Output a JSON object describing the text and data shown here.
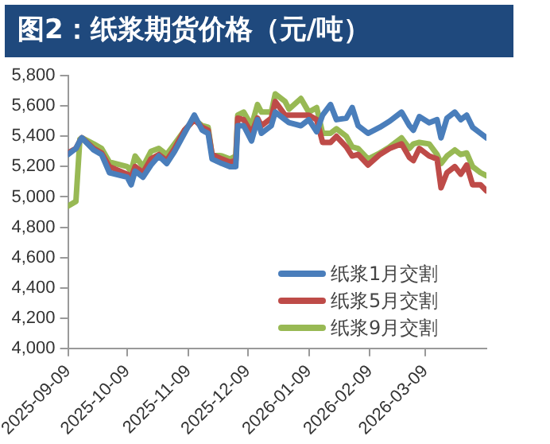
{
  "chart_data": {
    "type": "line",
    "title": "图2：纸浆期货价格（元/吨）",
    "x": [
      "2025-09-09",
      "2025-09-13",
      "2025-09-15",
      "2025-09-16",
      "2025-09-22",
      "2025-09-26",
      "2025-09-30",
      "2025-10-09",
      "2025-10-11",
      "2025-10-13",
      "2025-10-17",
      "2025-10-21",
      "2025-10-25",
      "2025-10-29",
      "2025-11-02",
      "2025-11-07",
      "2025-11-12",
      "2025-11-16",
      "2025-11-19",
      "2025-11-21",
      "2025-11-26",
      "2025-11-30",
      "2025-12-03",
      "2025-12-04",
      "2025-12-07",
      "2025-12-11",
      "2025-12-14",
      "2025-12-16",
      "2025-12-21",
      "2025-12-23",
      "2025-12-28",
      "2025-12-30",
      "2026-01-05",
      "2026-01-09",
      "2026-01-13",
      "2026-01-16",
      "2026-01-20",
      "2026-01-23",
      "2026-01-28",
      "2026-01-31",
      "2026-02-03",
      "2026-02-08",
      "2026-02-14",
      "2026-02-19",
      "2026-02-25",
      "2026-03-01",
      "2026-03-03",
      "2026-03-06",
      "2026-03-11",
      "2026-03-15",
      "2026-03-17",
      "2026-03-20",
      "2026-03-24",
      "2026-03-27",
      "2026-03-30",
      "2026-04-02",
      "2026-04-06",
      "2026-04-09"
    ],
    "series": [
      {
        "name": "纸浆1月交割",
        "color": "#4a7ebb",
        "values": [
          5280,
          5320,
          5370,
          5390,
          5310,
          5280,
          5160,
          5130,
          5080,
          5170,
          5130,
          5210,
          5270,
          5220,
          5300,
          5420,
          5540,
          5440,
          5420,
          5250,
          5220,
          5200,
          5200,
          5470,
          5470,
          5370,
          5510,
          5420,
          5470,
          5560,
          5510,
          5490,
          5470,
          5510,
          5430,
          5540,
          5610,
          5510,
          5520,
          5590,
          5470,
          5420,
          5460,
          5500,
          5560,
          5470,
          5440,
          5530,
          5490,
          5510,
          5390,
          5520,
          5560,
          5510,
          5540,
          5460,
          5420,
          5390
        ]
      },
      {
        "name": "纸浆5月交割",
        "color": "#be4b48",
        "values": [
          5290,
          5320,
          5370,
          5390,
          5320,
          5290,
          5200,
          5150,
          5130,
          5200,
          5160,
          5250,
          5280,
          5240,
          5320,
          5440,
          5510,
          5460,
          5440,
          5280,
          5250,
          5230,
          5240,
          5520,
          5510,
          5420,
          5520,
          5470,
          5520,
          5630,
          5540,
          5540,
          5540,
          5540,
          5510,
          5360,
          5360,
          5400,
          5330,
          5270,
          5280,
          5210,
          5280,
          5320,
          5350,
          5260,
          5240,
          5320,
          5270,
          5250,
          5060,
          5160,
          5200,
          5150,
          5210,
          5080,
          5080,
          5040
        ]
      },
      {
        "name": "纸浆9月交割",
        "color": "#98b954",
        "values": [
          4940,
          4970,
          5380,
          5390,
          5350,
          5320,
          5230,
          5200,
          5170,
          5270,
          5200,
          5300,
          5320,
          5280,
          5350,
          5440,
          5510,
          5470,
          5460,
          5280,
          5270,
          5250,
          5270,
          5540,
          5560,
          5470,
          5610,
          5560,
          5560,
          5680,
          5630,
          5580,
          5650,
          5560,
          5590,
          5420,
          5420,
          5450,
          5400,
          5330,
          5320,
          5250,
          5290,
          5330,
          5390,
          5320,
          5350,
          5360,
          5350,
          5280,
          5220,
          5270,
          5310,
          5280,
          5290,
          5200,
          5160,
          5140
        ]
      }
    ],
    "xlim": [
      "2025-09-09",
      "2026-04-09"
    ],
    "xticks": [
      "2025-09-09",
      "2025-10-09",
      "2025-11-09",
      "2025-12-09",
      "2026-01-09",
      "2026-02-09",
      "2026-03-09"
    ],
    "ylim": [
      4000,
      5800
    ],
    "yticks": [
      {
        "value": 4000,
        "label": "4,000"
      },
      {
        "value": 4200,
        "label": "4,200"
      },
      {
        "value": 4400,
        "label": "4,400"
      },
      {
        "value": 4600,
        "label": "4,600"
      },
      {
        "value": 4800,
        "label": "4,800"
      },
      {
        "value": 5000,
        "label": "5,000"
      },
      {
        "value": 5200,
        "label": "5,200"
      },
      {
        "value": 5400,
        "label": "5,400"
      },
      {
        "value": 5600,
        "label": "5,600"
      },
      {
        "value": 5800,
        "label": "5,800"
      }
    ],
    "grid": false,
    "legend": "bottom right",
    "marker": "none",
    "line_style": "solid"
  }
}
